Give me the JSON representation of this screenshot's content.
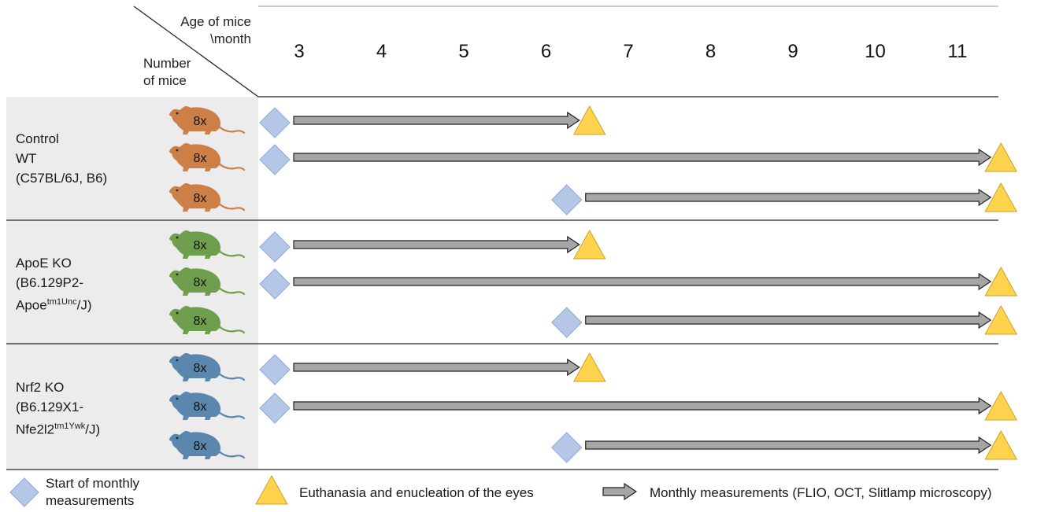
{
  "header": {
    "age_label_line1": "Age of mice",
    "age_label_line2": "\\month",
    "number_label_line1": "Number",
    "number_label_line2": "of mice"
  },
  "months": [
    "3",
    "4",
    "5",
    "6",
    "7",
    "8",
    "9",
    "10",
    "11"
  ],
  "groups": [
    {
      "id": "wt",
      "line1": "Control",
      "line2": "WT",
      "line3": "(C57BL/6J, B6)",
      "mouse_color": "#cd7f48",
      "rows": [
        {
          "count": "8x",
          "start_month": 3,
          "end_month": 6.5
        },
        {
          "count": "8x",
          "start_month": 3,
          "end_month": 11.5
        },
        {
          "count": "8x",
          "start_month": 6.5,
          "end_month": 11.5
        }
      ]
    },
    {
      "id": "apoe",
      "line1": "ApoE KO",
      "line2": "(B6.129P2-",
      "line3_pre": "Apoe",
      "line3_sup": "tm1Unc",
      "line3_post": "/J)",
      "mouse_color": "#6f9f4c",
      "rows": [
        {
          "count": "8x",
          "start_month": 3,
          "end_month": 6.5
        },
        {
          "count": "8x",
          "start_month": 3,
          "end_month": 11.5
        },
        {
          "count": "8x",
          "start_month": 6.5,
          "end_month": 11.5
        }
      ]
    },
    {
      "id": "nrf2",
      "line1": "Nrf2 KO",
      "line2": "(B6.129X1-",
      "line3_pre": "Nfe2l2",
      "line3_sup": "tm1Ywk",
      "line3_post": "/J)",
      "mouse_color": "#5b86ad",
      "rows": [
        {
          "count": "8x",
          "start_month": 3,
          "end_month": 6.5
        },
        {
          "count": "8x",
          "start_month": 3,
          "end_month": 11.5
        },
        {
          "count": "8x",
          "start_month": 6.5,
          "end_month": 11.5
        }
      ]
    }
  ],
  "legend": {
    "start_line1": "Start of monthly",
    "start_line2": "measurements",
    "euthanasia": "Euthanasia and enucleation of the eyes",
    "monthly": "Monthly measurements (FLIO, OCT, Slitlamp microscopy)"
  },
  "colors": {
    "diamond_fill": "#b4c7e7",
    "diamond_stroke": "#8eaadb",
    "triangle_fill": "#ffd34d",
    "triangle_stroke": "#c9a227",
    "arrow_fill": "#a6a6a6",
    "arrow_stroke": "#222222",
    "label_bg": "#ececec"
  }
}
